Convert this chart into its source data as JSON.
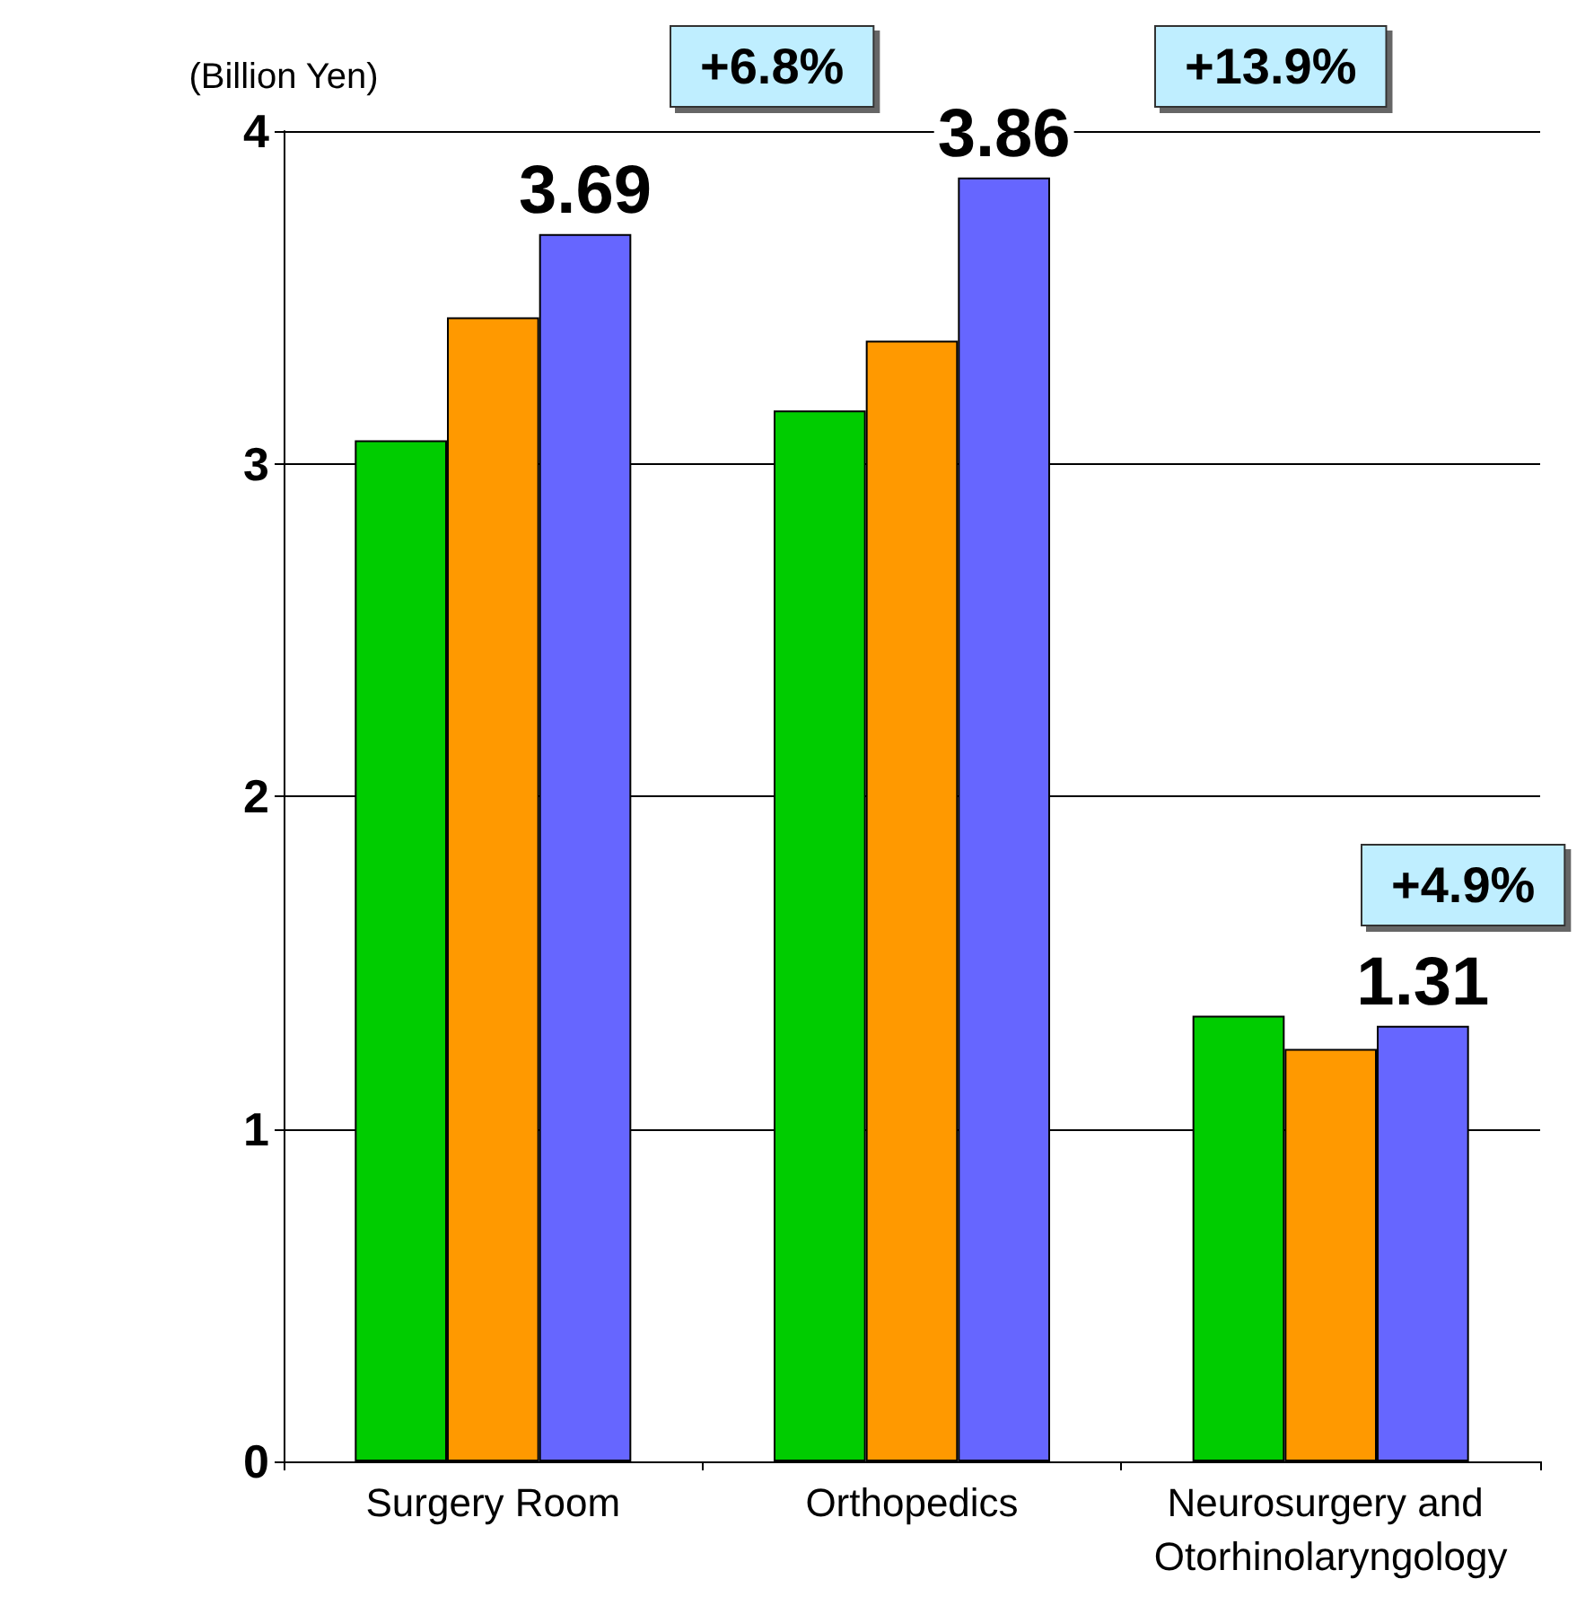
{
  "chart_data": {
    "type": "bar",
    "ylabel": "(Billion Yen)",
    "categories": [
      "Surgery Room",
      "Orthopedics",
      "Neurosurgery and Otorhinolaryngology"
    ],
    "series": [
      {
        "color": "#00cc00",
        "values": [
          3.07,
          3.16,
          1.34
        ]
      },
      {
        "color": "#ff9900",
        "values": [
          3.44,
          3.37,
          1.24
        ]
      },
      {
        "color": "#6666ff",
        "values": [
          3.69,
          3.86,
          1.31
        ],
        "value_labels": [
          "3.69",
          "3.86",
          "1.31"
        ]
      }
    ],
    "annotations": [
      "+6.8%",
      "+13.9%",
      "+4.9%"
    ],
    "ylim": [
      0,
      4
    ],
    "yticks": [
      0,
      1,
      2,
      3,
      4
    ],
    "grid": "y"
  }
}
